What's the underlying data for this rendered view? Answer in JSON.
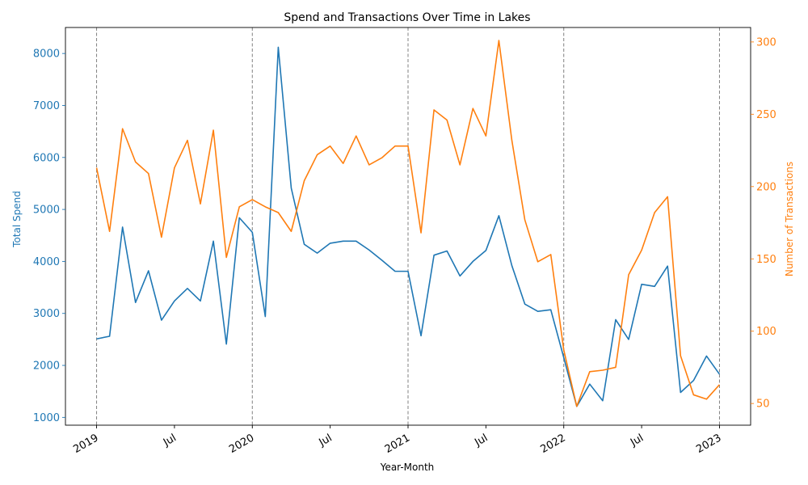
{
  "chart_data": {
    "type": "line",
    "title": "Spend and Transactions Over Time in Lakes",
    "xlabel": "Year-Month",
    "ylabel_left": "Total Spend",
    "ylabel_right": "Number of Transactions",
    "colors": {
      "spend": "#1f77b4",
      "transactions": "#ff7f0e",
      "vline": "#808080"
    },
    "x_ticks": [
      {
        "date": "2019-01",
        "label": "2019",
        "bold": true
      },
      {
        "date": "2019-07",
        "label": "Jul",
        "bold": false
      },
      {
        "date": "2020-01",
        "label": "2020",
        "bold": true
      },
      {
        "date": "2020-07",
        "label": "Jul",
        "bold": false
      },
      {
        "date": "2021-01",
        "label": "2021",
        "bold": true
      },
      {
        "date": "2021-07",
        "label": "Jul",
        "bold": false
      },
      {
        "date": "2022-01",
        "label": "2022",
        "bold": true
      },
      {
        "date": "2022-07",
        "label": "Jul",
        "bold": false
      },
      {
        "date": "2023-01",
        "label": "2023",
        "bold": true
      }
    ],
    "year_lines": [
      "2019-01",
      "2020-01",
      "2021-01",
      "2022-01",
      "2023-01"
    ],
    "y_left": {
      "lim": [
        850,
        8500
      ],
      "ticks": [
        1000,
        2000,
        3000,
        4000,
        5000,
        6000,
        7000,
        8000
      ]
    },
    "y_right": {
      "lim": [
        35,
        310
      ],
      "ticks": [
        50,
        100,
        150,
        200,
        250,
        300
      ]
    },
    "x": [
      "2019-01",
      "2019-02",
      "2019-03",
      "2019-04",
      "2019-05",
      "2019-06",
      "2019-07",
      "2019-08",
      "2019-09",
      "2019-10",
      "2019-11",
      "2019-12",
      "2020-01",
      "2020-02",
      "2020-03",
      "2020-04",
      "2020-05",
      "2020-06",
      "2020-07",
      "2020-08",
      "2020-09",
      "2020-10",
      "2020-11",
      "2020-12",
      "2021-01",
      "2021-02",
      "2021-03",
      "2021-04",
      "2021-05",
      "2021-06",
      "2021-07",
      "2021-08",
      "2021-09",
      "2021-10",
      "2021-11",
      "2021-12",
      "2022-01",
      "2022-02",
      "2022-03",
      "2022-04",
      "2022-05",
      "2022-06",
      "2022-07",
      "2022-08",
      "2022-09",
      "2022-10",
      "2022-11",
      "2022-12",
      "2023-01"
    ],
    "series": [
      {
        "name": "Total Spend",
        "axis": "left",
        "values": [
          2510,
          2560,
          4660,
          3210,
          3820,
          2870,
          3240,
          3480,
          3240,
          4390,
          2410,
          4840,
          4560,
          2940,
          8120,
          5410,
          4330,
          4160,
          4350,
          4390,
          4390,
          4220,
          4020,
          3810,
          3810,
          2570,
          4120,
          4200,
          3720,
          4000,
          4210,
          4880,
          3920,
          3180,
          3040,
          3070,
          2150,
          1210,
          1640,
          1320,
          2880,
          2500,
          3560,
          3520,
          3910,
          1480,
          1710,
          2180,
          1830
        ]
      },
      {
        "name": "Number of Transactions",
        "axis": "right",
        "values": [
          213,
          169,
          240,
          217,
          209,
          165,
          213,
          232,
          188,
          239,
          151,
          186,
          191,
          186,
          182,
          169,
          204,
          222,
          228,
          216,
          235,
          215,
          220,
          228,
          228,
          168,
          253,
          246,
          215,
          254,
          235,
          301,
          232,
          177,
          148,
          153,
          87,
          48,
          72,
          73,
          75,
          139,
          156,
          182,
          193,
          83,
          56,
          53,
          63
        ]
      }
    ]
  }
}
